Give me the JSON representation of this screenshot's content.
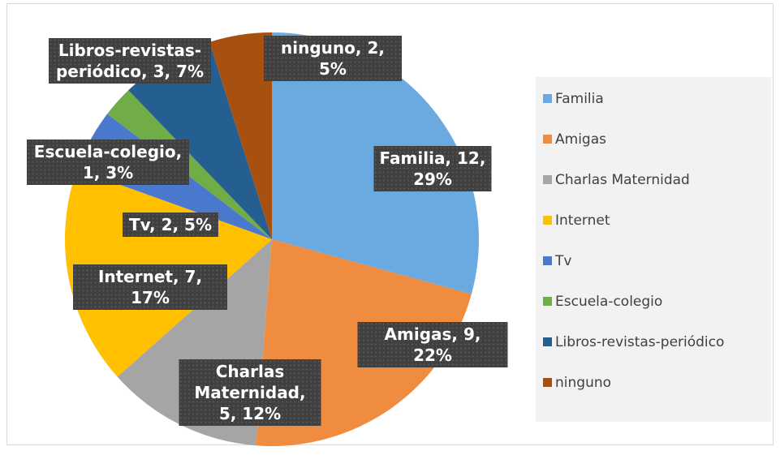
{
  "chart_data": {
    "type": "pie",
    "categories": [
      "Familia",
      "Amigas",
      "Charlas Maternidad",
      "Internet",
      "Tv",
      "Escuela-colegio",
      "Libros-revistas-periódico",
      "ninguno"
    ],
    "values": [
      12,
      9,
      5,
      7,
      2,
      1,
      3,
      2
    ],
    "value_labels": [
      "Familia, 12, 29%",
      "Amigas, 9, 22%",
      "Charlas Maternidad, 5, 12%",
      "Internet, 7, 17%",
      "Tv, 2, 5%",
      "Escuela-colegio, 1, 3%",
      "Libros-revistas-periódico, 3, 7%",
      "ninguno, 2, 5%"
    ],
    "colors": [
      "#6aaae0",
      "#f08c3f",
      "#a5a5a5",
      "#ffc000",
      "#4a78cc",
      "#70ad47",
      "#255e91",
      "#a8500f"
    ],
    "legend": "right"
  }
}
